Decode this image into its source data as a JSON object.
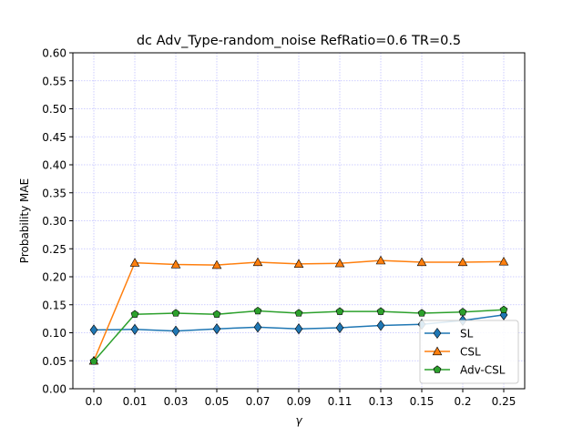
{
  "chart_data": {
    "type": "line",
    "title": "dc Adv_Type-random_noise RefRatio=0.6 TR=0.5",
    "xlabel": "γ",
    "ylabel": "Probability MAE",
    "categories": [
      "0.0",
      "0.01",
      "0.03",
      "0.05",
      "0.07",
      "0.09",
      "0.11",
      "0.13",
      "0.15",
      "0.2",
      "0.25"
    ],
    "ylim": [
      0.0,
      0.6
    ],
    "yticks": [
      "0.00",
      "0.05",
      "0.10",
      "0.15",
      "0.20",
      "0.25",
      "0.30",
      "0.35",
      "0.40",
      "0.45",
      "0.50",
      "0.55",
      "0.60"
    ],
    "grid": true,
    "legend_position": "lower-right",
    "series": [
      {
        "name": "SL",
        "color": "#1f77b4",
        "marker": "diamond",
        "values": [
          0.105,
          0.106,
          0.103,
          0.107,
          0.11,
          0.107,
          0.109,
          0.113,
          0.115,
          0.122,
          0.132
        ]
      },
      {
        "name": "CSL",
        "color": "#ff7f0e",
        "marker": "triangle",
        "values": [
          0.05,
          0.225,
          0.222,
          0.221,
          0.226,
          0.223,
          0.224,
          0.229,
          0.226,
          0.226,
          0.227
        ]
      },
      {
        "name": "Adv-CSL",
        "color": "#2ca02c",
        "marker": "pentagon",
        "values": [
          0.049,
          0.133,
          0.135,
          0.133,
          0.139,
          0.135,
          0.138,
          0.138,
          0.135,
          0.137,
          0.141
        ]
      }
    ]
  }
}
